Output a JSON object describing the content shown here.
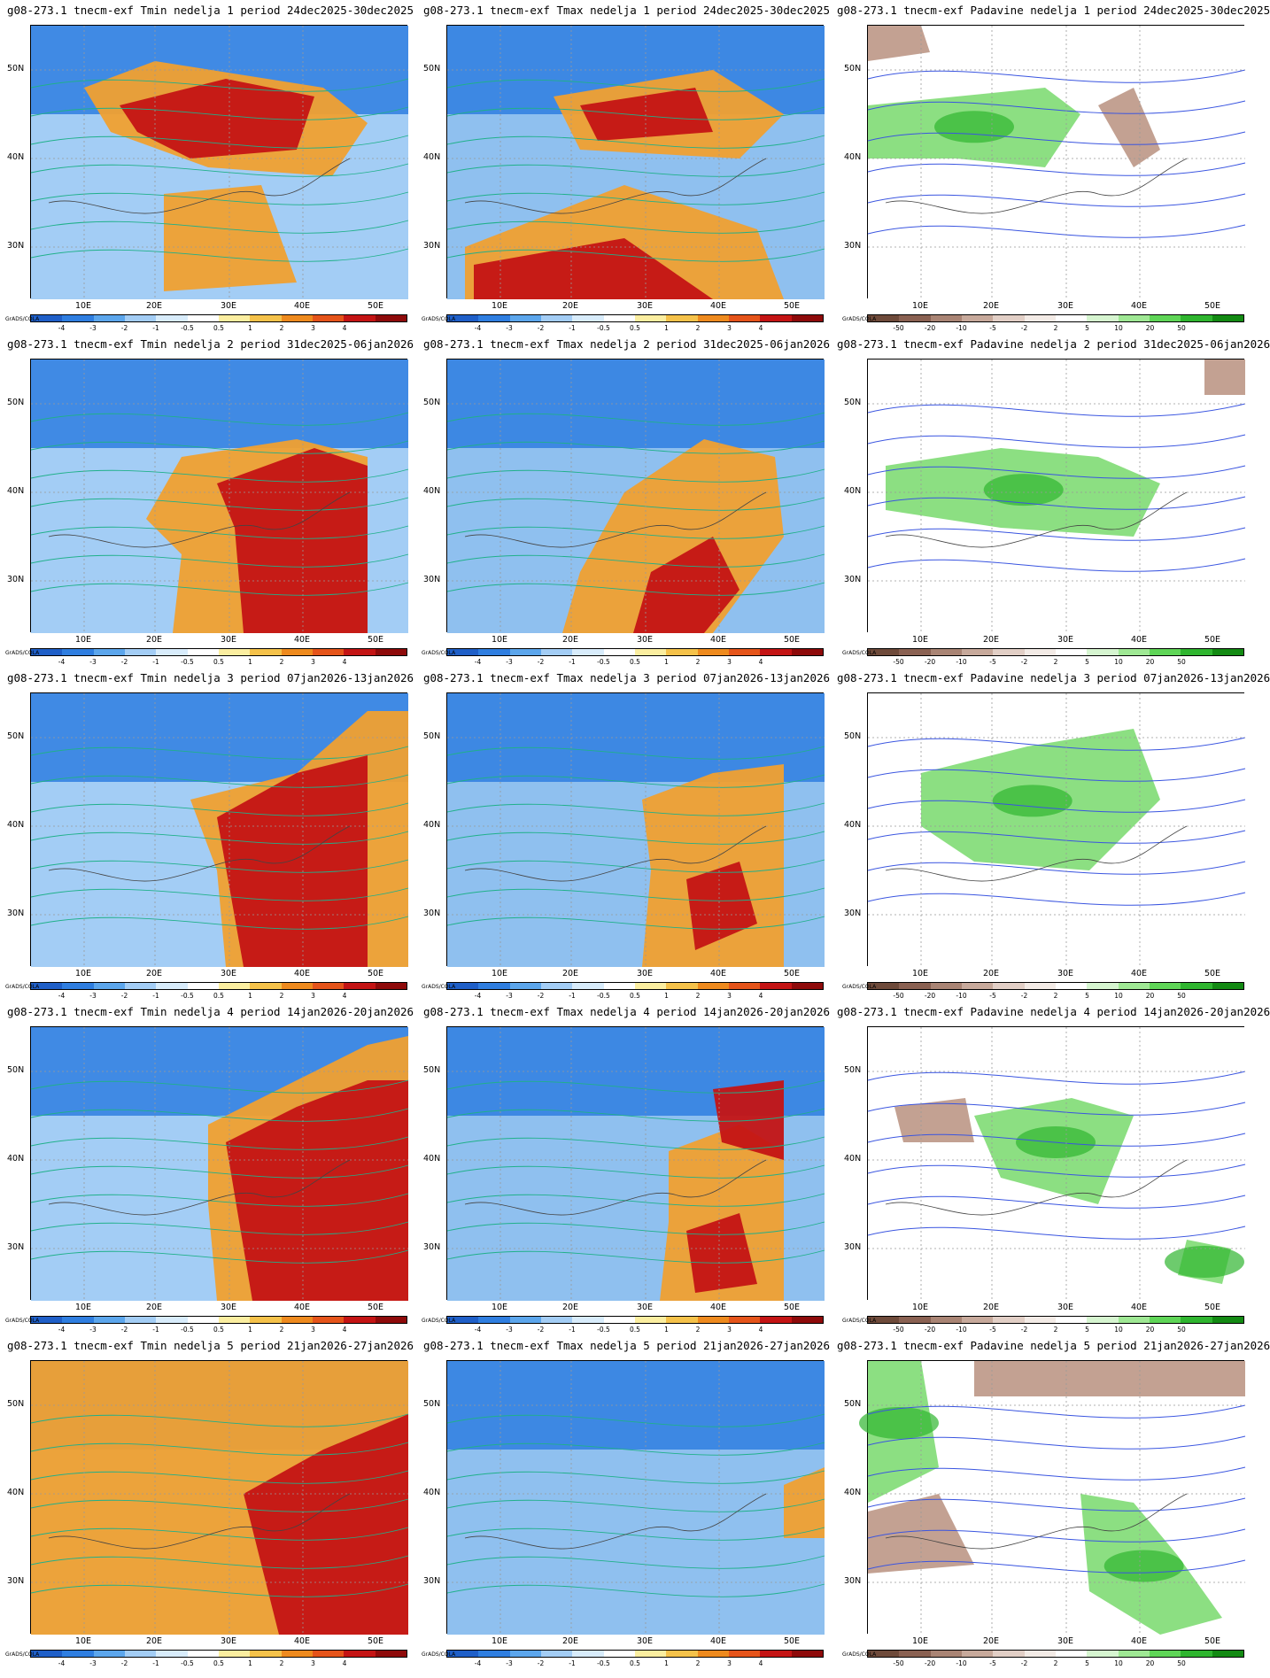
{
  "lat_labels": [
    "50N",
    "40N",
    "30N"
  ],
  "lon_labels": [
    "10E",
    "20E",
    "30E",
    "40E",
    "50E"
  ],
  "grads_label": "GrADS/COLA",
  "temp_scale": {
    "labels": [
      "-4",
      "-3",
      "-2",
      "-1",
      "-0.5",
      "0.5",
      "1",
      "2",
      "3",
      "4"
    ],
    "colors": [
      "#1f5fc8",
      "#2f7ee0",
      "#5ca6ec",
      "#a3cdf5",
      "#d8ecfb",
      "#ffffff",
      "#fbeea0",
      "#f5c24a",
      "#ee8a1e",
      "#e5541a",
      "#c41414",
      "#8e0a0a"
    ]
  },
  "precip_scale": {
    "labels": [
      "-50",
      "-20",
      "-10",
      "-5",
      "-2",
      "2",
      "5",
      "10",
      "20",
      "50"
    ],
    "colors": [
      "#6e4a3a",
      "#8a6152",
      "#a98474",
      "#c7a99b",
      "#e2cfc6",
      "#f3ebe6",
      "#ffffff",
      "#d6f5d0",
      "#9fe894",
      "#5fd557",
      "#2fb52f",
      "#138a13"
    ]
  },
  "rows": [
    {
      "tmin": "g08-273.1 tnecm-exf Tmin nedelja 1 period 24dec2025-30dec2025",
      "tmax": "g08-273.1 tnecm-exf Tmax nedelja 1 period 24dec2025-30dec2025",
      "prec": "g08-273.1 tnecm-exf Padavine nedelja 1 period 24dec2025-30dec2025"
    },
    {
      "tmin": "g08-273.1 tnecm-exf Tmin nedelja 2 period 31dec2025-06jan2026",
      "tmax": "g08-273.1 tnecm-exf Tmax nedelja 2 period 31dec2025-06jan2026",
      "prec": "g08-273.1 tnecm-exf Padavine nedelja 2 period 31dec2025-06jan2026"
    },
    {
      "tmin": "g08-273.1 tnecm-exf Tmin nedelja 3 period 07jan2026-13jan2026",
      "tmax": "g08-273.1 tnecm-exf Tmax nedelja 3 period 07jan2026-13jan2026",
      "prec": "g08-273.1 tnecm-exf Padavine nedelja 3 period 07jan2026-13jan2026"
    },
    {
      "tmin": "g08-273.1 tnecm-exf Tmin nedelja 4 period 14jan2026-20jan2026",
      "tmax": "g08-273.1 tnecm-exf Tmax nedelja 4 period 14jan2026-20jan2026",
      "prec": "g08-273.1 tnecm-exf Padavine nedelja 4 period 14jan2026-20jan2026"
    },
    {
      "tmin": "g08-273.1 tnecm-exf Tmin nedelja 5 period 21jan2026-27jan2026",
      "tmax": "g08-273.1 tnecm-exf Tmax nedelja 5 period 21jan2026-27jan2026",
      "prec": "g08-273.1 tnecm-exf Padavine nedelja 5 period 21jan2026-27jan2026"
    }
  ]
}
